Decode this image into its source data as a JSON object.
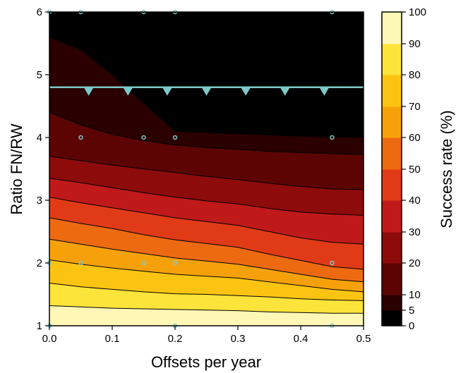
{
  "chart_data": {
    "type": "contour",
    "xlabel": "Offsets per year",
    "ylabel": "Ratio FN/RW",
    "xlim": [
      0,
      0.5
    ],
    "ylim": [
      1,
      6
    ],
    "x_ticks": [
      "0.0",
      "0.1",
      "0.2",
      "0.3",
      "0.4",
      "0.5"
    ],
    "y_ticks": [
      "1",
      "2",
      "3",
      "4",
      "5",
      "6"
    ],
    "colorbar": {
      "label": "Success rate (%)",
      "levels": [
        0,
        5,
        10,
        20,
        30,
        40,
        50,
        60,
        70,
        80,
        90,
        100
      ],
      "tick_labels": [
        "0",
        "5",
        "10",
        "20",
        "30",
        "40",
        "50",
        "60",
        "70",
        "80",
        "90",
        "100"
      ],
      "colors": [
        "#000000",
        "#2a0000",
        "#5c0404",
        "#8e0b0b",
        "#c01919",
        "#e03b16",
        "#ee6a10",
        "#f7a10a",
        "#fcc412",
        "#fde43a",
        "#fff7b6"
      ]
    },
    "contour_x": [
      0,
      0.05,
      0.1,
      0.15,
      0.2,
      0.25,
      0.3,
      0.35,
      0.4,
      0.45,
      0.5
    ],
    "boundaries": [
      {
        "level": 90,
        "y": [
          1.32,
          1.3,
          1.28,
          1.27,
          1.26,
          1.25,
          1.24,
          1.22,
          1.21,
          1.2,
          1.2
        ]
      },
      {
        "level": 80,
        "y": [
          1.68,
          1.62,
          1.58,
          1.54,
          1.51,
          1.5,
          1.48,
          1.46,
          1.43,
          1.41,
          1.4
        ]
      },
      {
        "level": 70,
        "y": [
          2.05,
          1.98,
          1.92,
          1.87,
          1.82,
          1.79,
          1.76,
          1.7,
          1.64,
          1.58,
          1.54
        ]
      },
      {
        "level": 60,
        "y": [
          2.38,
          2.3,
          2.22,
          2.15,
          2.08,
          2.03,
          1.98,
          1.9,
          1.82,
          1.74,
          1.7
        ]
      },
      {
        "level": 50,
        "y": [
          2.72,
          2.63,
          2.55,
          2.45,
          2.37,
          2.31,
          2.25,
          2.14,
          2.04,
          1.94,
          1.9
        ]
      },
      {
        "level": 40,
        "y": [
          3.05,
          2.96,
          2.88,
          2.8,
          2.72,
          2.66,
          2.6,
          2.5,
          2.4,
          2.33,
          2.3
        ]
      },
      {
        "level": 30,
        "y": [
          3.35,
          3.28,
          3.2,
          3.12,
          3.05,
          2.99,
          2.94,
          2.87,
          2.81,
          2.78,
          2.76
        ]
      },
      {
        "level": 20,
        "y": [
          3.7,
          3.63,
          3.56,
          3.5,
          3.44,
          3.38,
          3.33,
          3.27,
          3.22,
          3.18,
          3.17
        ]
      },
      {
        "level": 10,
        "y": [
          4.4,
          4.2,
          4.05,
          3.95,
          3.88,
          3.84,
          3.81,
          3.78,
          3.76,
          3.74,
          3.73
        ]
      },
      {
        "level": 5,
        "y": [
          5.6,
          5.4,
          5.0,
          4.55,
          4.1,
          4.08,
          4.06,
          4.04,
          4.02,
          4.01,
          4.0
        ]
      }
    ],
    "threshold_line": {
      "y": 4.8,
      "color": "#7ec8c8"
    },
    "threshold_markers_x": [
      0.0625,
      0.125,
      0.1875,
      0.25,
      0.3125,
      0.375,
      0.4375
    ],
    "sample_points": [
      {
        "x": 0,
        "y": 6
      },
      {
        "x": 0.05,
        "y": 6
      },
      {
        "x": 0.15,
        "y": 6
      },
      {
        "x": 0.2,
        "y": 6
      },
      {
        "x": 0.45,
        "y": 6
      },
      {
        "x": 0.05,
        "y": 4
      },
      {
        "x": 0.15,
        "y": 4
      },
      {
        "x": 0.2,
        "y": 4
      },
      {
        "x": 0.45,
        "y": 4
      },
      {
        "x": 0,
        "y": 2
      },
      {
        "x": 0.05,
        "y": 2
      },
      {
        "x": 0.15,
        "y": 2
      },
      {
        "x": 0.2,
        "y": 2
      },
      {
        "x": 0.45,
        "y": 2
      },
      {
        "x": 0,
        "y": 1
      },
      {
        "x": 0.2,
        "y": 1
      },
      {
        "x": 0.45,
        "y": 1
      }
    ],
    "point_color": "#7ec8c8"
  }
}
